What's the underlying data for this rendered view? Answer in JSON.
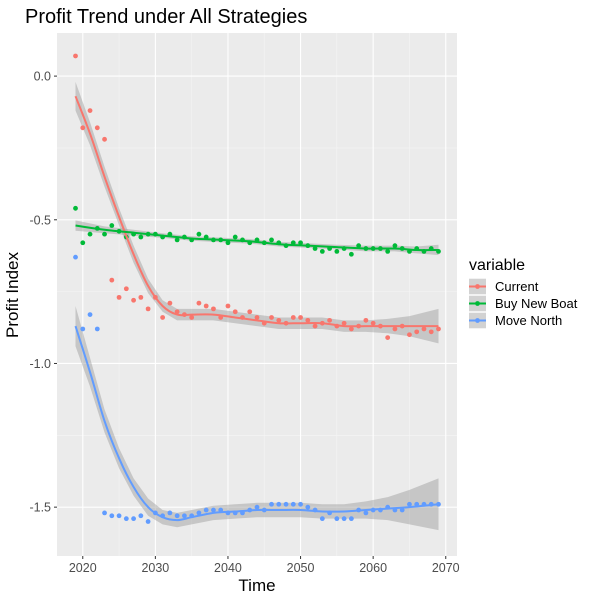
{
  "chart_data": {
    "type": "scatter",
    "title": "Profit Trend under All Strategies",
    "xlabel": "Time",
    "ylabel": "Profit Index",
    "xlim": [
      2019,
      2069
    ],
    "ylim": [
      -1.67,
      0.15
    ],
    "x_ticks": [
      2020,
      2030,
      2040,
      2050,
      2060,
      2070
    ],
    "y_ticks": [
      0.0,
      -0.5,
      -1.0,
      -1.5
    ],
    "y_tick_labels": [
      "0.0",
      "-0.5",
      "-1.0",
      "-1.5"
    ],
    "grid": true,
    "legend": {
      "title": "variable",
      "position": "right"
    },
    "series": [
      {
        "name": "Current",
        "color": "#F8766D",
        "points": [
          [
            2019,
            0.07
          ],
          [
            2020,
            -0.18
          ],
          [
            2021,
            -0.12
          ],
          [
            2022,
            -0.18
          ],
          [
            2023,
            -0.22
          ],
          [
            2024,
            -0.71
          ],
          [
            2025,
            -0.77
          ],
          [
            2026,
            -0.74
          ],
          [
            2027,
            -0.78
          ],
          [
            2028,
            -0.77
          ],
          [
            2029,
            -0.81
          ],
          [
            2030,
            -0.77
          ],
          [
            2031,
            -0.84
          ],
          [
            2032,
            -0.79
          ],
          [
            2033,
            -0.82
          ],
          [
            2034,
            -0.83
          ],
          [
            2035,
            -0.84
          ],
          [
            2036,
            -0.79
          ],
          [
            2037,
            -0.8
          ],
          [
            2038,
            -0.81
          ],
          [
            2039,
            -0.84
          ],
          [
            2040,
            -0.8
          ],
          [
            2041,
            -0.82
          ],
          [
            2042,
            -0.84
          ],
          [
            2043,
            -0.82
          ],
          [
            2044,
            -0.84
          ],
          [
            2045,
            -0.86
          ],
          [
            2046,
            -0.84
          ],
          [
            2047,
            -0.85
          ],
          [
            2048,
            -0.86
          ],
          [
            2049,
            -0.84
          ],
          [
            2050,
            -0.84
          ],
          [
            2051,
            -0.85
          ],
          [
            2052,
            -0.87
          ],
          [
            2053,
            -0.86
          ],
          [
            2054,
            -0.85
          ],
          [
            2055,
            -0.87
          ],
          [
            2056,
            -0.86
          ],
          [
            2057,
            -0.88
          ],
          [
            2058,
            -0.87
          ],
          [
            2059,
            -0.85
          ],
          [
            2060,
            -0.86
          ],
          [
            2061,
            -0.87
          ],
          [
            2062,
            -0.91
          ],
          [
            2063,
            -0.88
          ],
          [
            2064,
            -0.87
          ],
          [
            2065,
            -0.9
          ],
          [
            2066,
            -0.89
          ],
          [
            2067,
            -0.88
          ],
          [
            2068,
            -0.89
          ],
          [
            2069,
            -0.88
          ]
        ],
        "trend": [
          [
            2019,
            -0.07
          ],
          [
            2021,
            -0.2
          ],
          [
            2023,
            -0.35
          ],
          [
            2025,
            -0.49
          ],
          [
            2027,
            -0.62
          ],
          [
            2029,
            -0.73
          ],
          [
            2031,
            -0.8
          ],
          [
            2033,
            -0.83
          ],
          [
            2035,
            -0.83
          ],
          [
            2038,
            -0.83
          ],
          [
            2041,
            -0.84
          ],
          [
            2044,
            -0.85
          ],
          [
            2047,
            -0.86
          ],
          [
            2050,
            -0.86
          ],
          [
            2053,
            -0.86
          ],
          [
            2056,
            -0.87
          ],
          [
            2059,
            -0.87
          ],
          [
            2062,
            -0.87
          ],
          [
            2065,
            -0.87
          ],
          [
            2069,
            -0.87
          ]
        ],
        "band": [
          0.05,
          0.04,
          0.035,
          0.03,
          0.03,
          0.025,
          0.02,
          0.02,
          0.02,
          0.02,
          0.02,
          0.02,
          0.02,
          0.02,
          0.02,
          0.02,
          0.02,
          0.025,
          0.035,
          0.06
        ]
      },
      {
        "name": "Buy New Boat",
        "color": "#00BA38",
        "points": [
          [
            2019,
            -0.46
          ],
          [
            2020,
            -0.58
          ],
          [
            2021,
            -0.55
          ],
          [
            2022,
            -0.53
          ],
          [
            2023,
            -0.55
          ],
          [
            2024,
            -0.52
          ],
          [
            2025,
            -0.54
          ],
          [
            2026,
            -0.56
          ],
          [
            2027,
            -0.55
          ],
          [
            2028,
            -0.56
          ],
          [
            2029,
            -0.55
          ],
          [
            2030,
            -0.55
          ],
          [
            2031,
            -0.56
          ],
          [
            2032,
            -0.55
          ],
          [
            2033,
            -0.57
          ],
          [
            2034,
            -0.56
          ],
          [
            2035,
            -0.57
          ],
          [
            2036,
            -0.55
          ],
          [
            2037,
            -0.56
          ],
          [
            2038,
            -0.57
          ],
          [
            2039,
            -0.57
          ],
          [
            2040,
            -0.58
          ],
          [
            2041,
            -0.56
          ],
          [
            2042,
            -0.57
          ],
          [
            2043,
            -0.58
          ],
          [
            2044,
            -0.57
          ],
          [
            2045,
            -0.58
          ],
          [
            2046,
            -0.57
          ],
          [
            2047,
            -0.58
          ],
          [
            2048,
            -0.59
          ],
          [
            2049,
            -0.58
          ],
          [
            2050,
            -0.58
          ],
          [
            2051,
            -0.59
          ],
          [
            2052,
            -0.6
          ],
          [
            2053,
            -0.61
          ],
          [
            2054,
            -0.6
          ],
          [
            2055,
            -0.61
          ],
          [
            2056,
            -0.6
          ],
          [
            2057,
            -0.62
          ],
          [
            2058,
            -0.59
          ],
          [
            2059,
            -0.6
          ],
          [
            2060,
            -0.6
          ],
          [
            2061,
            -0.6
          ],
          [
            2062,
            -0.61
          ],
          [
            2063,
            -0.59
          ],
          [
            2064,
            -0.6
          ],
          [
            2065,
            -0.61
          ],
          [
            2066,
            -0.6
          ],
          [
            2067,
            -0.61
          ],
          [
            2068,
            -0.6
          ],
          [
            2069,
            -0.61
          ]
        ],
        "trend": [
          [
            2019,
            -0.52
          ],
          [
            2023,
            -0.535
          ],
          [
            2027,
            -0.545
          ],
          [
            2031,
            -0.555
          ],
          [
            2035,
            -0.565
          ],
          [
            2039,
            -0.57
          ],
          [
            2043,
            -0.575
          ],
          [
            2047,
            -0.585
          ],
          [
            2051,
            -0.59
          ],
          [
            2055,
            -0.595
          ],
          [
            2059,
            -0.6
          ],
          [
            2063,
            -0.6
          ],
          [
            2066,
            -0.605
          ],
          [
            2069,
            -0.605
          ]
        ],
        "band": [
          0.018,
          0.012,
          0.01,
          0.008,
          0.008,
          0.008,
          0.008,
          0.008,
          0.008,
          0.008,
          0.01,
          0.01,
          0.012,
          0.018
        ]
      },
      {
        "name": "Move North",
        "color": "#619CFF",
        "points": [
          [
            2019,
            -0.63
          ],
          [
            2020,
            -0.88
          ],
          [
            2021,
            -0.83
          ],
          [
            2022,
            -0.88
          ],
          [
            2023,
            -1.52
          ],
          [
            2024,
            -1.53
          ],
          [
            2025,
            -1.53
          ],
          [
            2026,
            -1.54
          ],
          [
            2027,
            -1.54
          ],
          [
            2028,
            -1.53
          ],
          [
            2029,
            -1.55
          ],
          [
            2030,
            -1.52
          ],
          [
            2031,
            -1.53
          ],
          [
            2032,
            -1.52
          ],
          [
            2033,
            -1.53
          ],
          [
            2034,
            -1.53
          ],
          [
            2035,
            -1.53
          ],
          [
            2036,
            -1.52
          ],
          [
            2037,
            -1.51
          ],
          [
            2038,
            -1.51
          ],
          [
            2039,
            -1.51
          ],
          [
            2040,
            -1.52
          ],
          [
            2041,
            -1.52
          ],
          [
            2042,
            -1.52
          ],
          [
            2043,
            -1.51
          ],
          [
            2044,
            -1.5
          ],
          [
            2045,
            -1.51
          ],
          [
            2046,
            -1.49
          ],
          [
            2047,
            -1.49
          ],
          [
            2048,
            -1.49
          ],
          [
            2049,
            -1.49
          ],
          [
            2050,
            -1.49
          ],
          [
            2051,
            -1.5
          ],
          [
            2052,
            -1.51
          ],
          [
            2053,
            -1.54
          ],
          [
            2054,
            -1.52
          ],
          [
            2055,
            -1.54
          ],
          [
            2056,
            -1.54
          ],
          [
            2057,
            -1.54
          ],
          [
            2058,
            -1.51
          ],
          [
            2059,
            -1.52
          ],
          [
            2060,
            -1.51
          ],
          [
            2061,
            -1.51
          ],
          [
            2062,
            -1.5
          ],
          [
            2063,
            -1.51
          ],
          [
            2064,
            -1.51
          ],
          [
            2065,
            -1.49
          ],
          [
            2066,
            -1.49
          ],
          [
            2067,
            -1.49
          ],
          [
            2068,
            -1.49
          ],
          [
            2069,
            -1.49
          ]
        ],
        "trend": [
          [
            2019,
            -0.87
          ],
          [
            2021,
            -1.03
          ],
          [
            2023,
            -1.2
          ],
          [
            2025,
            -1.33
          ],
          [
            2027,
            -1.43
          ],
          [
            2029,
            -1.5
          ],
          [
            2031,
            -1.535
          ],
          [
            2033,
            -1.545
          ],
          [
            2035,
            -1.535
          ],
          [
            2038,
            -1.52
          ],
          [
            2041,
            -1.515
          ],
          [
            2044,
            -1.51
          ],
          [
            2047,
            -1.51
          ],
          [
            2050,
            -1.51
          ],
          [
            2053,
            -1.515
          ],
          [
            2056,
            -1.515
          ],
          [
            2059,
            -1.51
          ],
          [
            2062,
            -1.505
          ],
          [
            2065,
            -1.5
          ],
          [
            2069,
            -1.49
          ]
        ],
        "band": [
          0.07,
          0.05,
          0.04,
          0.035,
          0.03,
          0.03,
          0.025,
          0.025,
          0.025,
          0.025,
          0.025,
          0.025,
          0.025,
          0.025,
          0.025,
          0.025,
          0.03,
          0.04,
          0.06,
          0.09
        ]
      }
    ]
  }
}
